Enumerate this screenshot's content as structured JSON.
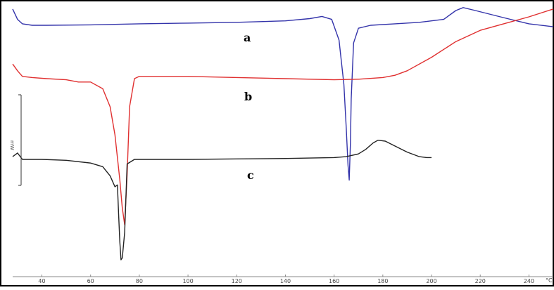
{
  "chart_data": {
    "type": "line",
    "title": "",
    "xlabel": "°C",
    "ylabel": "",
    "xlim": [
      28,
      250
    ],
    "x_ticks": [
      40,
      60,
      80,
      100,
      120,
      140,
      160,
      180,
      200,
      220,
      240
    ],
    "x_tick_labels": [
      "40",
      "60",
      "80",
      "100",
      "120",
      "140",
      "160",
      "180",
      "200",
      "220",
      "240"
    ],
    "x_unit_label": "°C",
    "scale_bar_label": "mW",
    "grid": false,
    "legend": "none",
    "curve_labels": [
      "a",
      "b",
      "c"
    ],
    "series": [
      {
        "name": "a",
        "color": "#3333aa",
        "x": [
          28,
          30,
          32,
          36,
          42,
          60,
          80,
          100,
          120,
          140,
          150,
          155,
          159,
          162,
          164,
          165,
          165.7,
          166.2,
          166.7,
          167,
          168,
          170,
          175,
          185,
          195,
          205,
          210,
          213,
          218,
          230,
          240,
          250
        ],
        "y": [
          11,
          4,
          1,
          0,
          0,
          0.3,
          1,
          1.5,
          2,
          3,
          4.5,
          6,
          4,
          -10,
          -40,
          -70,
          -95,
          -105,
          -80,
          -50,
          -12,
          -2,
          0,
          1,
          2,
          4,
          10,
          12,
          10,
          5,
          1,
          -1
        ]
      },
      {
        "name": "b",
        "color": "#e03030",
        "x": [
          28,
          30,
          32,
          36,
          42,
          50,
          55,
          60,
          65,
          68,
          70,
          72,
          73,
          74,
          75,
          76,
          78,
          80,
          90,
          100,
          120,
          140,
          160,
          170,
          180,
          185,
          190,
          200,
          210,
          220,
          230,
          240,
          250
        ],
        "y": [
          8,
          2,
          -3,
          -4,
          -5,
          -6,
          -8,
          -8,
          -14,
          -30,
          -55,
          -95,
          -120,
          -135,
          -90,
          -30,
          -5,
          -3,
          -3,
          -3,
          -4,
          -5,
          -6,
          -5.5,
          -4,
          -2,
          2,
          14,
          28,
          38,
          44,
          50,
          57
        ]
      },
      {
        "name": "c",
        "color": "#222222",
        "x": [
          28,
          30,
          32,
          40,
          50,
          60,
          65,
          68,
          70,
          71,
          71.5,
          72,
          72.5,
          73,
          74,
          75,
          78,
          80,
          100,
          120,
          140,
          160,
          165,
          170,
          173,
          176,
          178,
          181,
          184,
          190,
          195,
          198,
          200
        ],
        "y": [
          3,
          7,
          0,
          0,
          -1,
          -4,
          -8,
          -18,
          -30,
          -28,
          -60,
          -90,
          -110,
          -108,
          -80,
          -5,
          0,
          0,
          0,
          0.5,
          1,
          2,
          3,
          6,
          11,
          18,
          21,
          20,
          16,
          8,
          3,
          2,
          2
        ]
      }
    ]
  }
}
